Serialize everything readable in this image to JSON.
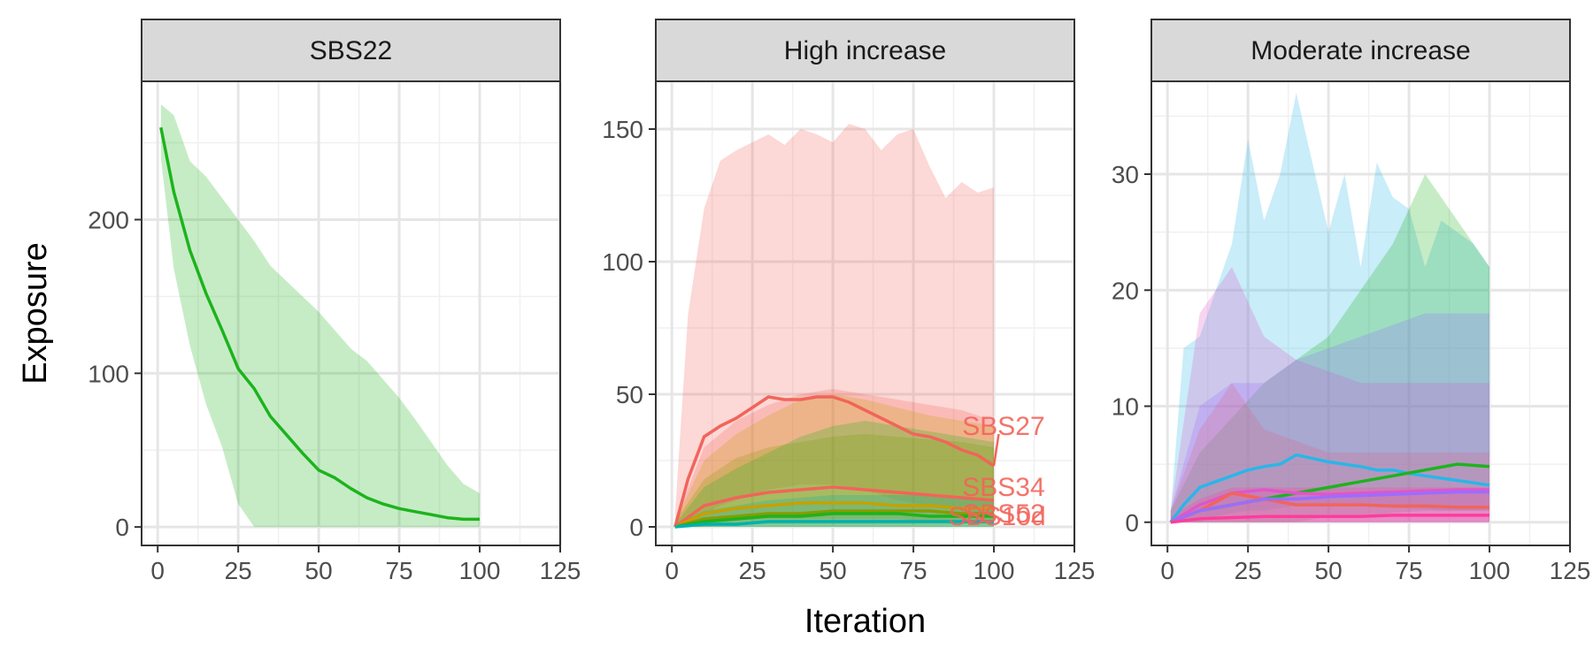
{
  "chart_data": {
    "type": "line",
    "xlabel": "Iteration",
    "ylabel": "Exposure",
    "x_ticks": [
      0,
      25,
      50,
      75,
      100,
      125
    ],
    "grid": true,
    "legend": "none",
    "facets": [
      {
        "title": "SBS22",
        "xlim": [
          -5,
          125
        ],
        "ylim": [
          -12,
          290
        ],
        "y_ticks": [
          0,
          100,
          200
        ],
        "series": [
          {
            "color": "#1db31d",
            "x": [
              1,
              5,
              10,
              15,
              20,
              25,
              30,
              35,
              40,
              45,
              50,
              55,
              60,
              65,
              70,
              75,
              80,
              85,
              90,
              95,
              100
            ],
            "y": [
              260,
              218,
              180,
              152,
              128,
              103,
              90,
              72,
              60,
              48,
              37,
              32,
              25,
              19,
              15,
              12,
              10,
              8,
              6,
              5,
              5
            ],
            "upper": [
              275,
              268,
              238,
              228,
              214,
              200,
              186,
              170,
              160,
              150,
              140,
              128,
              116,
              108,
              96,
              84,
              70,
              55,
              40,
              28,
              22
            ],
            "lower": [
              240,
              168,
              118,
              80,
              52,
              15,
              0,
              0,
              0,
              0,
              0,
              0,
              0,
              0,
              0,
              0,
              0,
              0,
              0,
              0,
              0
            ]
          }
        ],
        "labels": []
      },
      {
        "title": "High increase",
        "xlim": [
          -5,
          125
        ],
        "ylim": [
          -7,
          168
        ],
        "y_ticks": [
          0,
          50,
          100,
          150
        ],
        "series": [
          {
            "name": "SBS27",
            "color": "#f2645a",
            "x": [
              1,
              5,
              10,
              15,
              20,
              25,
              30,
              35,
              40,
              45,
              50,
              55,
              60,
              65,
              70,
              75,
              80,
              85,
              90,
              95,
              100
            ],
            "y": [
              0,
              18,
              34,
              38,
              41,
              45,
              49,
              48,
              48,
              49,
              49,
              47,
              44,
              41,
              38,
              35,
              34,
              32,
              29,
              27,
              23
            ],
            "upper": [
              5,
              80,
              120,
              138,
              142,
              145,
              148,
              144,
              150,
              148,
              145,
              152,
              150,
              142,
              148,
              150,
              136,
              124,
              130,
              126,
              128
            ],
            "lower": [
              0,
              2,
              5,
              8,
              10,
              12,
              14,
              15,
              16,
              16,
              16,
              15,
              14,
              12,
              10,
              9,
              8,
              7,
              6,
              5,
              4
            ]
          },
          {
            "name": "SBS34",
            "color": "#f2645a",
            "x": [
              1,
              10,
              20,
              30,
              40,
              50,
              60,
              70,
              80,
              90,
              100
            ],
            "y": [
              0,
              8,
              11,
              13,
              14,
              15,
              14,
              13,
              12,
              11,
              10
            ],
            "upper": [
              2,
              30,
              40,
              46,
              50,
              52,
              50,
              48,
              46,
              44,
              40
            ],
            "lower": [
              0,
              1,
              2,
              3,
              3,
              3,
              3,
              3,
              2,
              2,
              2
            ]
          },
          {
            "name": "SBS52",
            "color": "#c8a000",
            "x": [
              1,
              10,
              20,
              30,
              40,
              50,
              60,
              70,
              80,
              90,
              100
            ],
            "y": [
              0,
              5,
              7,
              8,
              9,
              9,
              9,
              8,
              8,
              7,
              7
            ],
            "upper": [
              2,
              25,
              35,
              42,
              48,
              50,
              48,
              45,
              42,
              40,
              38
            ],
            "lower": [
              0,
              0,
              1,
              1,
              1,
              1,
              1,
              1,
              1,
              1,
              1
            ]
          },
          {
            "name": "SBS10d",
            "color": "#8a9b00",
            "x": [
              1,
              10,
              20,
              30,
              40,
              50,
              60,
              70,
              80,
              90,
              100
            ],
            "y": [
              0,
              3,
              4,
              5,
              5,
              6,
              6,
              6,
              6,
              5,
              5
            ],
            "upper": [
              2,
              18,
              26,
              30,
              32,
              34,
              35,
              34,
              33,
              32,
              30
            ],
            "lower": [
              0,
              0,
              0,
              0,
              0,
              0,
              0,
              0,
              0,
              0,
              0
            ]
          },
          {
            "name": "",
            "color": "#1db31d",
            "x": [
              1,
              10,
              20,
              30,
              40,
              50,
              60,
              70,
              80,
              90,
              100
            ],
            "y": [
              0,
              2,
              3,
              4,
              4,
              5,
              5,
              5,
              4,
              4,
              4
            ],
            "upper": [
              1,
              15,
              22,
              28,
              34,
              38,
              40,
              38,
              36,
              34,
              32
            ],
            "lower": [
              0,
              0,
              0,
              0,
              0,
              0,
              0,
              0,
              0,
              0,
              0
            ]
          },
          {
            "name": "",
            "color": "#00b0b0",
            "x": [
              1,
              10,
              20,
              30,
              40,
              50,
              60,
              70,
              80,
              90,
              100
            ],
            "y": [
              0,
              1,
              1,
              2,
              2,
              2,
              2,
              2,
              2,
              2,
              2
            ],
            "upper": [
              1,
              6,
              8,
              10,
              11,
              12,
              12,
              12,
              12,
              11,
              10
            ],
            "lower": [
              0,
              0,
              0,
              0,
              0,
              0,
              0,
              0,
              0,
              0,
              0
            ]
          }
        ],
        "labels": [
          {
            "text": "SBS27",
            "x": 103,
            "y": 38,
            "color": "#f2645a"
          },
          {
            "text": "SBS34",
            "x": 103,
            "y": 15,
            "color": "#f2645a"
          },
          {
            "text": "SBS52",
            "x": 103,
            "y": 5,
            "color": "#f2645a"
          },
          {
            "text": "SBS10d",
            "x": 101,
            "y": 4,
            "color": "#f2645a"
          }
        ]
      },
      {
        "title": "Moderate increase",
        "xlim": [
          -5,
          125
        ],
        "ylim": [
          -2,
          38
        ],
        "y_ticks": [
          0,
          10,
          20,
          30
        ],
        "series": [
          {
            "color": "#29b6e8",
            "x": [
              1,
              5,
              10,
              15,
              20,
              25,
              30,
              35,
              40,
              45,
              50,
              55,
              60,
              65,
              70,
              75,
              80,
              85,
              90,
              95,
              100
            ],
            "y": [
              0,
              1.5,
              3,
              3.5,
              4,
              4.5,
              4.8,
              5,
              5.8,
              5.5,
              5.2,
              5,
              4.8,
              4.5,
              4.5,
              4.2,
              4,
              3.8,
              3.6,
              3.4,
              3.2
            ],
            "upper": [
              1,
              15,
              16,
              20,
              24,
              33,
              26,
              30,
              37,
              31,
              25,
              30,
              22,
              31,
              28,
              27,
              22,
              26,
              25,
              24,
              22
            ],
            "lower": [
              0,
              0,
              0,
              0.5,
              0.8,
              1,
              1,
              1.2,
              1.5,
              1.5,
              1.5,
              1.5,
              1.4,
              1.3,
              1.2,
              1.2,
              1.1,
              1,
              1,
              1,
              1
            ]
          },
          {
            "color": "#1db31d",
            "x": [
              1,
              10,
              20,
              30,
              40,
              50,
              60,
              70,
              80,
              90,
              100
            ],
            "y": [
              0,
              1,
              1.5,
              2,
              2.5,
              3,
              3.5,
              4,
              4.5,
              5,
              4.8
            ],
            "upper": [
              1,
              6,
              9,
              12,
              14,
              16,
              20,
              24,
              30,
              26,
              22
            ],
            "lower": [
              0,
              0,
              0,
              0,
              0,
              0.5,
              0.5,
              0.8,
              1,
              1,
              1
            ]
          },
          {
            "color": "#e056c8",
            "x": [
              1,
              10,
              20,
              30,
              40,
              50,
              60,
              70,
              80,
              90,
              100
            ],
            "y": [
              0,
              1.5,
              2.5,
              2.8,
              2.5,
              2.4,
              2.5,
              2.6,
              2.7,
              2.8,
              2.8
            ],
            "upper": [
              1,
              18,
              22,
              16,
              14,
              13,
              12,
              12,
              12,
              12,
              12
            ],
            "lower": [
              0,
              0,
              0,
              0,
              0,
              0,
              0,
              0,
              0,
              0,
              0
            ]
          },
          {
            "color": "#f2645a",
            "x": [
              1,
              10,
              20,
              30,
              40,
              50,
              60,
              70,
              80,
              90,
              100
            ],
            "y": [
              0,
              1,
              2.5,
              2,
              1.5,
              1.5,
              1.5,
              1.4,
              1.4,
              1.3,
              1.3
            ],
            "upper": [
              1,
              8,
              12,
              8,
              7,
              6,
              6,
              6,
              6,
              6,
              6
            ],
            "lower": [
              0,
              0,
              0,
              0,
              0,
              0,
              0,
              0,
              0,
              0,
              0
            ]
          },
          {
            "color": "#9b6dff",
            "x": [
              1,
              10,
              20,
              30,
              40,
              50,
              60,
              70,
              80,
              90,
              100
            ],
            "y": [
              0,
              1,
              1.5,
              2,
              2,
              2.2,
              2.3,
              2.4,
              2.5,
              2.6,
              2.6
            ],
            "upper": [
              1,
              10,
              12,
              12,
              14,
              15,
              16,
              17,
              18,
              18,
              18
            ],
            "lower": [
              0,
              0,
              0,
              0,
              0,
              0,
              0,
              0,
              0,
              0,
              0
            ]
          },
          {
            "color": "#ff3c9a",
            "x": [
              1,
              10,
              20,
              30,
              40,
              50,
              60,
              70,
              80,
              90,
              100
            ],
            "y": [
              0,
              0.3,
              0.4,
              0.5,
              0.5,
              0.5,
              0.5,
              0.6,
              0.6,
              0.6,
              0.6
            ],
            "upper": [
              0.5,
              2,
              3,
              3,
              3,
              3,
              3,
              3,
              3,
              3,
              3
            ],
            "lower": [
              0,
              0,
              0,
              0,
              0,
              0,
              0,
              0,
              0,
              0,
              0
            ]
          }
        ],
        "labels": []
      }
    ]
  }
}
